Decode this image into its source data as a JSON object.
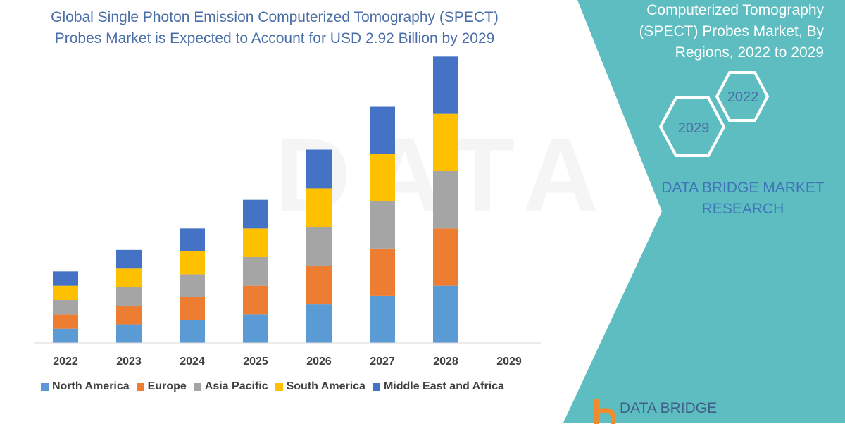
{
  "title": "Global Single Photon Emission Computerized Tomography (SPECT) Probes Market is Expected to Account for USD 2.92 Billion by 2029",
  "side_panel": {
    "title_line": "Computerized Tomography (SPECT) Probes Market, By Regions, 2022 to 2029",
    "hex_years": [
      "2022",
      "2029"
    ],
    "brand": "DATA BRIDGE MARKET RESEARCH",
    "logo_text": "DATA BRIDGE",
    "panel_color": "#5dbdc0"
  },
  "watermark": {
    "text": "DATA BRIDGE"
  },
  "chart_data": {
    "type": "bar",
    "stacked": true,
    "categories": [
      "2022",
      "2023",
      "2024",
      "2025",
      "2026",
      "2027",
      "2028",
      "2029"
    ],
    "series": [
      {
        "name": "North America",
        "color": "#5b9bd5",
        "values": [
          1.0,
          1.3,
          1.6,
          2.0,
          2.7,
          3.3,
          4.0,
          0
        ]
      },
      {
        "name": "Europe",
        "color": "#ed7d31",
        "values": [
          1.0,
          1.3,
          1.6,
          2.0,
          2.7,
          3.3,
          4.0,
          0
        ]
      },
      {
        "name": "Asia Pacific",
        "color": "#a5a5a5",
        "values": [
          1.0,
          1.3,
          1.6,
          2.0,
          2.7,
          3.3,
          4.0,
          0
        ]
      },
      {
        "name": "South America",
        "color": "#ffc000",
        "values": [
          1.0,
          1.3,
          1.6,
          2.0,
          2.7,
          3.3,
          4.0,
          0
        ]
      },
      {
        "name": "Middle East and Africa",
        "color": "#4472c4",
        "values": [
          1.0,
          1.3,
          1.6,
          2.0,
          2.7,
          3.3,
          4.0,
          0
        ]
      }
    ],
    "ylim": [
      0,
      21
    ],
    "legend_position": "bottom",
    "grid": false
  }
}
